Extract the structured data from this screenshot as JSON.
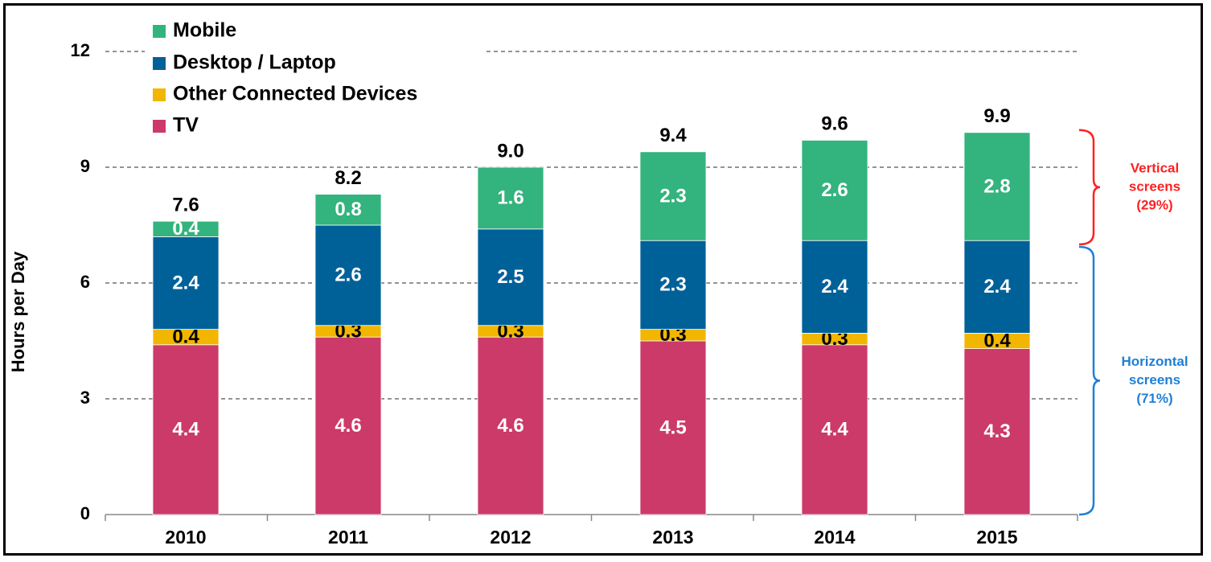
{
  "chart_data": {
    "type": "bar",
    "stacked": true,
    "title": "",
    "xlabel": "",
    "ylabel": "Hours per Day",
    "ylim": [
      0,
      12
    ],
    "yticks": [
      0,
      3,
      6,
      9,
      12
    ],
    "grid": true,
    "legend_position": "top-left",
    "categories": [
      "2010",
      "2011",
      "2012",
      "2013",
      "2014",
      "2015"
    ],
    "series": [
      {
        "name": "TV",
        "color": "#cc3a6a",
        "values": [
          4.4,
          4.6,
          4.6,
          4.5,
          4.4,
          4.3
        ]
      },
      {
        "name": "Other Connected Devices",
        "color": "#f2b600",
        "values": [
          0.4,
          0.3,
          0.3,
          0.3,
          0.3,
          0.4
        ]
      },
      {
        "name": "Desktop / Laptop",
        "color": "#006199",
        "values": [
          2.4,
          2.6,
          2.5,
          2.3,
          2.4,
          2.4
        ]
      },
      {
        "name": "Mobile",
        "color": "#33b37d",
        "values": [
          0.4,
          0.8,
          1.6,
          2.3,
          2.6,
          2.8
        ]
      }
    ],
    "legend_order": [
      "Mobile",
      "Desktop / Laptop",
      "Other Connected Devices",
      "TV"
    ],
    "totals": [
      "7.6",
      "8.2",
      "9.0",
      "9.4",
      "9.6",
      "9.9"
    ],
    "annotations": [
      {
        "lines": [
          "Vertical",
          "screens",
          "(29%)"
        ],
        "color": "#ff2020",
        "range": [
          7.0,
          9.9
        ]
      },
      {
        "lines": [
          "Horizontal",
          "screens",
          "(71%)"
        ],
        "color": "#1f7fd6",
        "range": [
          0,
          7.0
        ]
      }
    ]
  }
}
